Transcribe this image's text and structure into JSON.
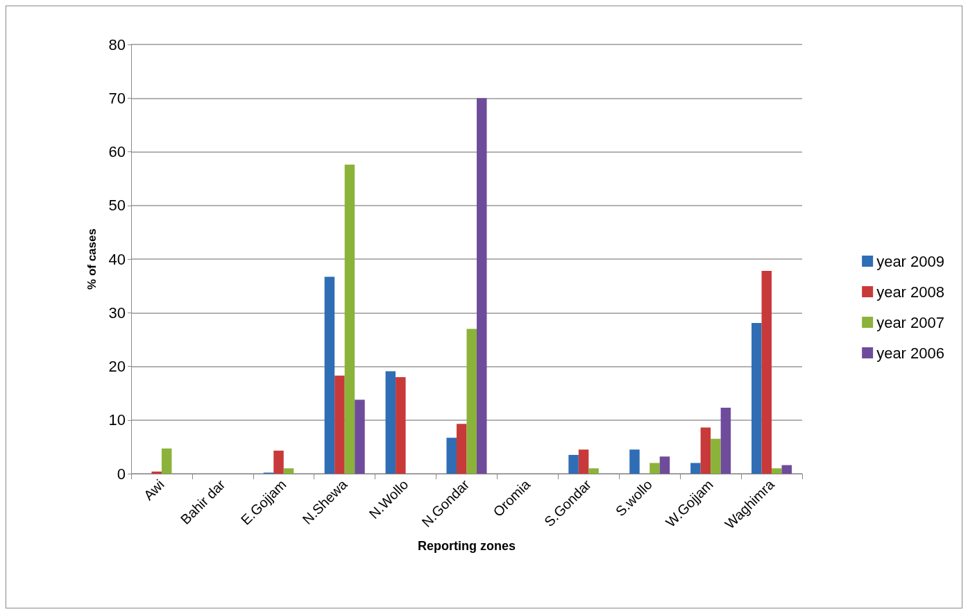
{
  "chart_data": {
    "type": "bar",
    "xlabel": "Reporting zones",
    "ylabel": "% of cases",
    "categories": [
      "Awi",
      "Bahir dar",
      "E.Gojjam",
      "N.Shewa",
      "N.Wollo",
      "N.Gondar",
      "Oromia",
      "S.Gondar",
      "S.wollo",
      "W.Gojjam",
      "Waghimra"
    ],
    "series": [
      {
        "name": "year 2009",
        "color": "#2f6db5",
        "values": [
          0,
          0,
          0.2,
          36.7,
          19.1,
          6.7,
          0,
          3.5,
          4.5,
          2.0,
          28.1
        ]
      },
      {
        "name": "year 2008",
        "color": "#c83a3a",
        "values": [
          0.4,
          0,
          4.3,
          18.3,
          18.0,
          9.3,
          0,
          4.5,
          0,
          8.6,
          37.8
        ]
      },
      {
        "name": "year 2007",
        "color": "#8bb33a",
        "values": [
          4.7,
          0,
          1.0,
          57.6,
          0,
          27.0,
          0,
          1.0,
          2.0,
          6.5,
          1.0
        ]
      },
      {
        "name": "year 2006",
        "color": "#6f4c9b",
        "values": [
          0,
          0,
          0,
          13.8,
          0,
          70.0,
          0,
          0,
          3.2,
          12.3,
          1.6
        ]
      }
    ],
    "ylim": [
      0,
      80
    ],
    "yticks": [
      0,
      10,
      20,
      30,
      40,
      50,
      60,
      70,
      80
    ],
    "grid": "y",
    "legend": "right"
  }
}
